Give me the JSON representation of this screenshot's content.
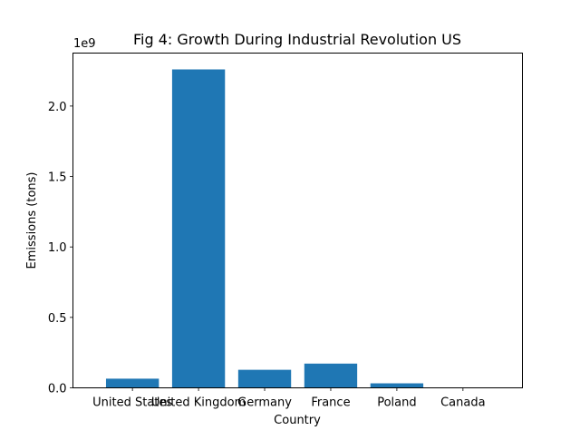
{
  "chart_data": {
    "type": "bar",
    "title": "Fig 4: Growth During Industrial Revolution US",
    "xlabel": "Country",
    "ylabel": "Emissions (tons)",
    "y_offset_text": "1e9",
    "categories": [
      "United States",
      "United Kingdom",
      "Germany",
      "France",
      "Poland",
      "Canada"
    ],
    "values": [
      65000000,
      2260000000,
      128000000,
      172000000,
      32000000,
      1000000
    ],
    "ylim": [
      0,
      2376000000
    ],
    "yticks": [
      0,
      500000000,
      1000000000,
      1500000000,
      2000000000
    ],
    "ytick_labels": [
      "0.0",
      "0.5",
      "1.0",
      "1.5",
      "2.0"
    ],
    "bar_color": "#1f77b4",
    "grid": false,
    "legend": "none"
  }
}
